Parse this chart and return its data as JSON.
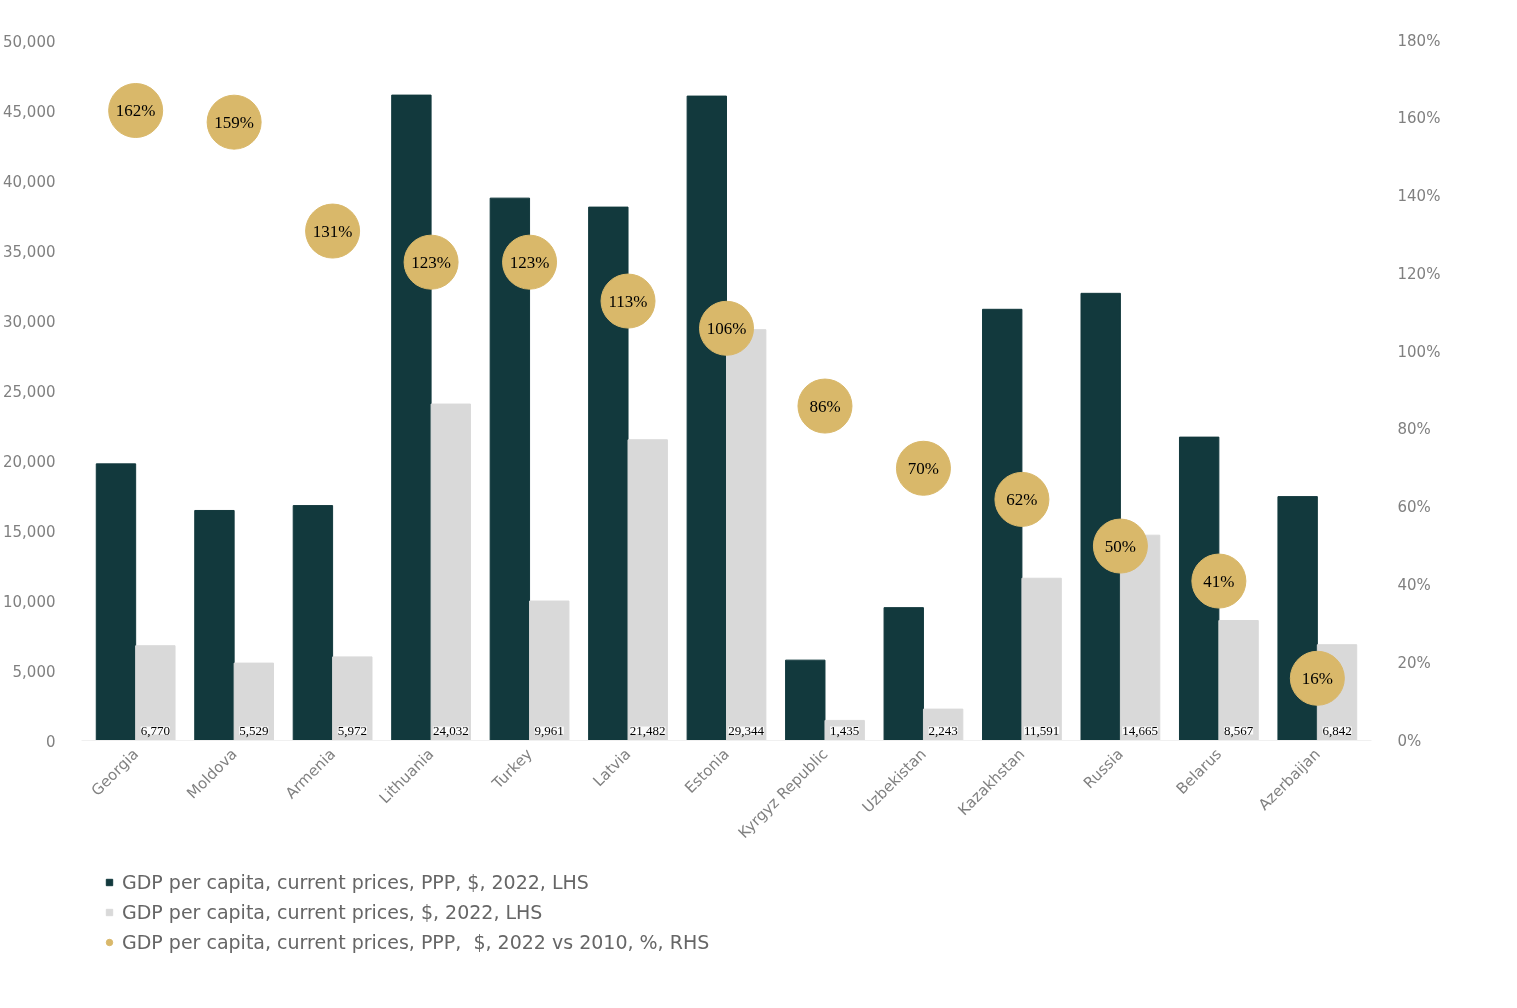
{
  "chart_data": {
    "type": "bar",
    "categories": [
      "Georgia",
      "Moldova",
      "Armenia",
      "Lithuania",
      "Turkey",
      "Latvia",
      "Estonia",
      "Kyrgyz Republic",
      "Uzbekistan",
      "Kazakhstan",
      "Russia",
      "Belarus",
      "Azerbaijan"
    ],
    "series": [
      {
        "name": "GDP per capita, current prices, PPP, $, 2022, LHS",
        "color": "#12393d",
        "values": [
          19760,
          16430,
          16780,
          46100,
          38740,
          38100,
          46030,
          5740,
          9490,
          30800,
          31940,
          21670,
          17420
        ]
      },
      {
        "name": "GDP per capita, current prices, $, 2022, LHS",
        "color": "#d9d9d9",
        "values": [
          6770,
          5529,
          5972,
          24032,
          9961,
          21482,
          29344,
          1435,
          2243,
          11591,
          14665,
          8567,
          6842
        ],
        "value_labels": [
          "6,770",
          "5,529",
          "5,972",
          "24,032",
          "9,961",
          "21,482",
          "29,344",
          "1,435",
          "2,243",
          "11,591",
          "14,665",
          "8,567",
          "6,842"
        ]
      },
      {
        "name": "GDP per capita, current prices, PPP,  $, 2022 vs 2010, %, RHS",
        "type": "scatter",
        "axis": "y2",
        "marker": "circle",
        "color": "#d9b86a",
        "values": [
          162,
          159,
          131,
          123,
          123,
          113,
          106,
          86,
          70,
          62,
          50,
          41,
          16
        ],
        "value_labels": [
          "162%",
          "159%",
          "131%",
          "123%",
          "123%",
          "113%",
          "106%",
          "86%",
          "70%",
          "62%",
          "50%",
          "41%",
          "16%"
        ]
      }
    ],
    "ylim": [
      0,
      50000
    ],
    "yticks": [
      {
        "value": 0,
        "label": "0"
      },
      {
        "value": 5000,
        "label": "5,000"
      },
      {
        "value": 10000,
        "label": "10,000"
      },
      {
        "value": 15000,
        "label": "15,000"
      },
      {
        "value": 20000,
        "label": "20,000"
      },
      {
        "value": 25000,
        "label": "25,000"
      },
      {
        "value": 30000,
        "label": "30,000"
      },
      {
        "value": 35000,
        "label": "35,000"
      },
      {
        "value": 40000,
        "label": "40,000"
      },
      {
        "value": 45000,
        "label": "45,000"
      },
      {
        "value": 50000,
        "label": "50,000"
      }
    ],
    "y2lim": [
      0,
      180
    ],
    "y2ticks": [
      {
        "value": 0,
        "label": "0%"
      },
      {
        "value": 20,
        "label": "20%"
      },
      {
        "value": 40,
        "label": "40%"
      },
      {
        "value": 60,
        "label": "60%"
      },
      {
        "value": 80,
        "label": "80%"
      },
      {
        "value": 100,
        "label": "100%"
      },
      {
        "value": 120,
        "label": "120%"
      },
      {
        "value": 140,
        "label": "140%"
      },
      {
        "value": 160,
        "label": "160%"
      },
      {
        "value": 180,
        "label": "180%"
      }
    ],
    "grid": false,
    "legend": "bottom"
  }
}
